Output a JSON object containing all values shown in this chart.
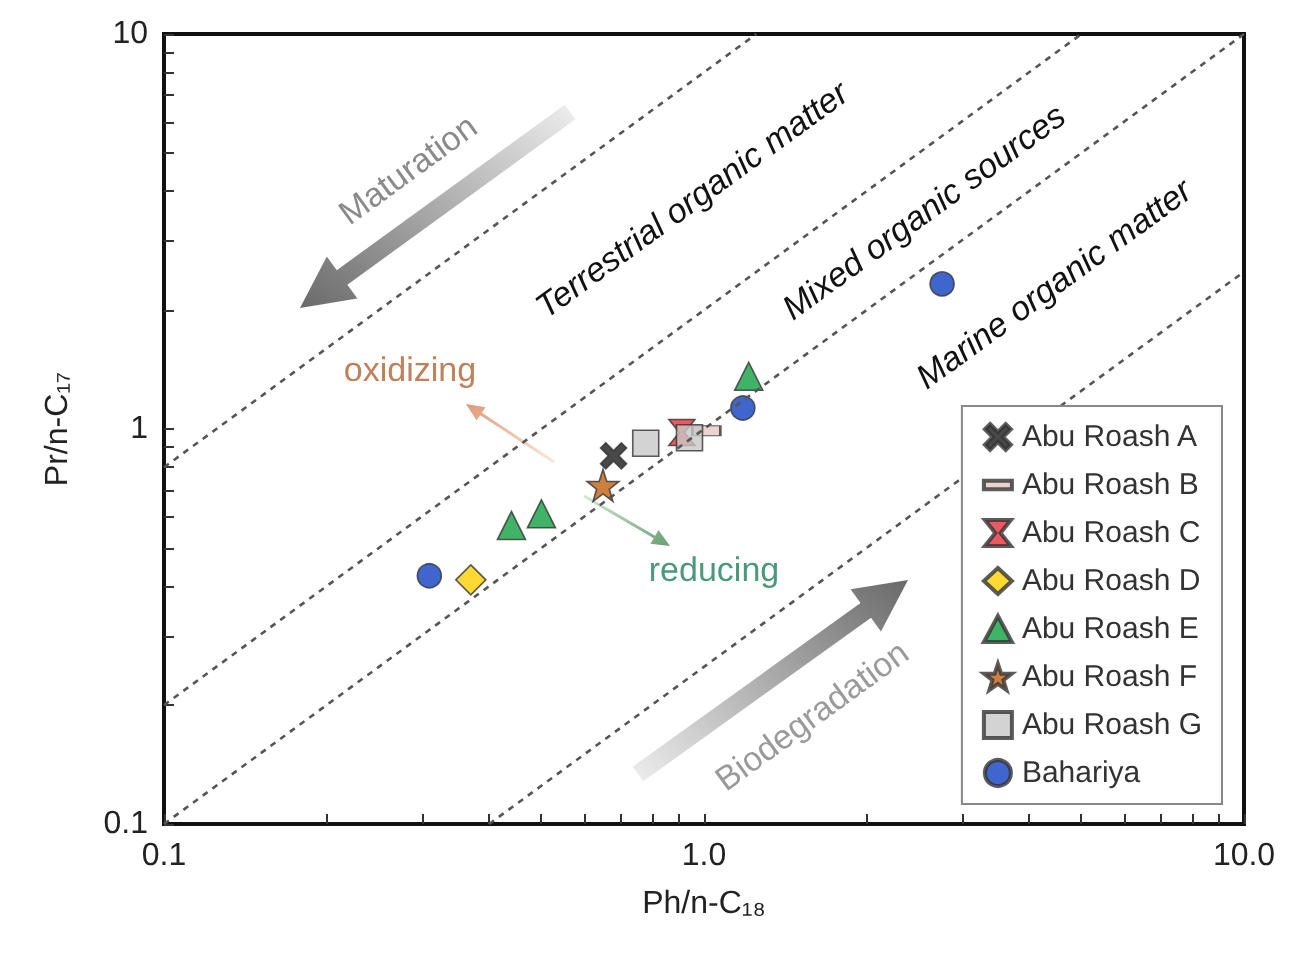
{
  "chart_data": {
    "type": "scatter",
    "xlabel": "Ph/n-C₁₈",
    "ylabel": "Pr/n-C₁₇",
    "log": "xy",
    "grid": false,
    "legend": "bottom right",
    "xlim": [
      0.1,
      10
    ],
    "ylim": [
      0.1,
      10
    ],
    "xticks": [
      {
        "value": 0.1,
        "label": "0.1"
      },
      {
        "value": 0.2,
        "label": null
      },
      {
        "value": 0.3,
        "label": null
      },
      {
        "value": 0.4,
        "label": null
      },
      {
        "value": 0.5,
        "label": null
      },
      {
        "value": 0.6,
        "label": null
      },
      {
        "value": 0.7,
        "label": null
      },
      {
        "value": 0.8,
        "label": null
      },
      {
        "value": 0.9,
        "label": null
      },
      {
        "value": 1,
        "label": "1.0"
      },
      {
        "value": 2,
        "label": null
      },
      {
        "value": 3,
        "label": null
      },
      {
        "value": 4,
        "label": null
      },
      {
        "value": 5,
        "label": null
      },
      {
        "value": 6,
        "label": null
      },
      {
        "value": 7,
        "label": null
      },
      {
        "value": 8,
        "label": null
      },
      {
        "value": 9,
        "label": null
      },
      {
        "value": 10,
        "label": "10.0"
      }
    ],
    "yticks": [
      0.1,
      {
        "value": 0.2,
        "label": null
      },
      {
        "value": 0.3,
        "label": null
      },
      {
        "value": 0.4,
        "label": null
      },
      {
        "value": 0.5,
        "label": null
      },
      {
        "value": 0.6,
        "label": null
      },
      {
        "value": 0.7,
        "label": null
      },
      {
        "value": 0.8,
        "label": null
      },
      {
        "value": 0.9,
        "label": null
      },
      1,
      {
        "value": 2,
        "label": null
      },
      {
        "value": 3,
        "label": null
      },
      {
        "value": 4,
        "label": null
      },
      {
        "value": 5,
        "label": null
      },
      {
        "value": 6,
        "label": null
      },
      {
        "value": 7,
        "label": null
      },
      {
        "value": 8,
        "label": null
      },
      {
        "value": 9,
        "label": null
      },
      10
    ],
    "series": [
      {
        "type": "line",
        "color": "#555555",
        "line_style": "dotted",
        "marker": "none",
        "x": [
          0.1,
          1.25
        ],
        "values": [
          0.8,
          10
        ]
      },
      {
        "type": "line",
        "color": "#555555",
        "line_style": "dotted",
        "marker": "none",
        "x": [
          0.1,
          5
        ],
        "values": [
          0.2,
          10
        ]
      },
      {
        "type": "line",
        "color": "#555555",
        "line_style": "dotted",
        "marker": "none",
        "x": [
          0.1,
          10
        ],
        "values": [
          0.1,
          10
        ]
      },
      {
        "type": "line",
        "color": "#555555",
        "line_style": "dotted",
        "marker": "none",
        "x": [
          0.4,
          10
        ],
        "values": [
          0.1,
          2.5
        ]
      },
      {
        "name": "Abu Roash A",
        "color": "#1a1a1a",
        "marker": "cross",
        "x": [
          0.68
        ],
        "values": [
          0.855
        ]
      },
      {
        "name": "Abu Roash B",
        "color": "#e8c8c0",
        "x": [
          1.01
        ],
        "values": [
          0.99
        ]
      },
      {
        "name": "Abu Roash C",
        "color": "#e8303a",
        "x": [
          0.91
        ],
        "values": [
          0.98
        ]
      },
      {
        "name": "Abu Roash D",
        "color": "#ffd000",
        "marker": "diamond",
        "x": [
          0.37
        ],
        "values": [
          0.415
        ]
      },
      {
        "name": "Abu Roash E",
        "color": "#10a040",
        "marker": "triangle",
        "x": [
          0.44,
          0.5,
          1.21
        ],
        "values": [
          0.57,
          0.61,
          1.36
        ]
      },
      {
        "name": "Abu Roash F",
        "color": "#c06010",
        "marker": "star",
        "x": [
          0.65
        ],
        "values": [
          0.72
        ]
      },
      {
        "name": "Abu Roash G",
        "color": "#c8c8c8",
        "marker": "square",
        "x": [
          0.78,
          0.94
        ],
        "values": [
          0.92,
          0.95
        ]
      },
      {
        "name": "Bahariya",
        "color": "#1040c0",
        "marker": "circle",
        "x": [
          0.31,
          1.18,
          2.76
        ],
        "values": [
          0.425,
          1.13,
          2.33
        ]
      }
    ],
    "annotations": [
      "Terrestrial organic matter",
      "Mixed organic sources",
      "Marine organic matter",
      "Maturation",
      "Biodegradation",
      "oxidizing",
      "reducing"
    ]
  }
}
